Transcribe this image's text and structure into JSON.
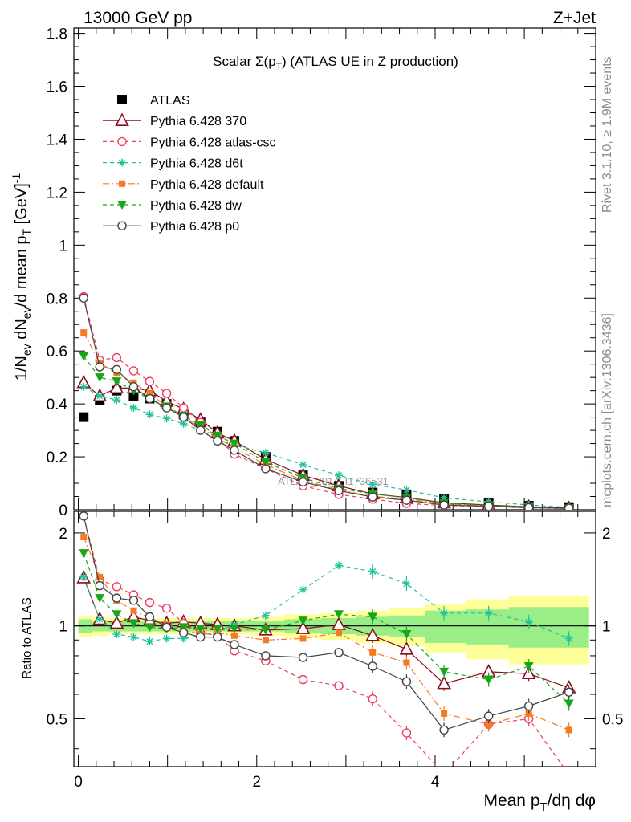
{
  "header": {
    "left": "13000 GeV pp",
    "right": "Z+Jet"
  },
  "side_labels": {
    "top": "Rivet 3.1.10, ≥ 1.9M events",
    "bottom": "mcplots.cern.ch [arXiv:1306.3436]"
  },
  "watermark": "ATLAS_2014_I1736531",
  "colors": {
    "data": "#000000",
    "p370": "#8b0e1c",
    "atlascsc": "#ef3b5e",
    "d6t": "#1fc29a",
    "default": "#f57a24",
    "dw": "#18a618",
    "p0": "#444444",
    "band_inner": "#99ee88",
    "band_outer": "#ffff99"
  },
  "chart_data": {
    "type": "line",
    "title": "Scalar Σ(p_T) (ATLAS UE in Z production)",
    "xlabel": "Mean p_T/dη dφ",
    "ylabel": "1/N_ev dN_ev/d mean p_T [GeV]^-1",
    "ratio_ylabel": "Ratio to ATLAS",
    "xlim": [
      -0.05,
      5.8
    ],
    "ylim": [
      0,
      1.82
    ],
    "ratio_ylim": [
      0.35,
      2.35
    ],
    "log_x": false,
    "grid": false,
    "legend_position": "top-left",
    "x_ticks": [
      "0",
      "2",
      "4"
    ],
    "y_ticks": [
      "0",
      "0.2",
      "0.4",
      "0.6",
      "0.8",
      "1",
      "1.2",
      "1.4",
      "1.6",
      "1.8"
    ],
    "ratio_y_ticks": [
      "0.5",
      "1",
      "2"
    ],
    "x": [
      0.06,
      0.24,
      0.43,
      0.62,
      0.8,
      0.99,
      1.18,
      1.37,
      1.56,
      1.75,
      2.1,
      2.52,
      2.92,
      3.3,
      3.68,
      4.1,
      4.6,
      5.05,
      5.5
    ],
    "series": [
      {
        "name": "ATLAS",
        "key": "data",
        "line": "none",
        "marker": "square",
        "values": [
          0.35,
          0.415,
          0.45,
          0.43,
          0.42,
          0.4,
          0.36,
          0.33,
          0.295,
          0.26,
          0.2,
          0.13,
          0.09,
          0.065,
          0.055,
          0.04,
          0.025,
          0.015,
          0.01
        ],
        "band_inner": [
          0.05,
          0.04,
          0.04,
          0.04,
          0.04,
          0.04,
          0.04,
          0.04,
          0.04,
          0.04,
          0.04,
          0.05,
          0.06,
          0.07,
          0.08,
          0.12,
          0.13,
          0.15,
          0.15
        ],
        "band_outer": [
          0.08,
          0.07,
          0.06,
          0.06,
          0.06,
          0.06,
          0.06,
          0.06,
          0.06,
          0.06,
          0.07,
          0.09,
          0.1,
          0.12,
          0.14,
          0.18,
          0.22,
          0.25,
          0.25
        ]
      },
      {
        "name": "Pythia 6.428 370",
        "key": "p370",
        "line": "solid",
        "marker": "triangle-open",
        "values": [
          0.48,
          0.43,
          0.46,
          0.46,
          0.45,
          0.41,
          0.38,
          0.34,
          0.29,
          0.26,
          0.19,
          0.13,
          0.09,
          0.06,
          0.046,
          0.026,
          0.018,
          0.011,
          0.006
        ],
        "ratio": [
          1.43,
          1.05,
          1.02,
          1.07,
          1.04,
          1.02,
          1.03,
          1.02,
          1.01,
          1.0,
          0.97,
          0.98,
          1.01,
          0.93,
          0.84,
          0.65,
          0.71,
          0.7,
          0.63
        ]
      },
      {
        "name": "Pythia 6.428 atlas-csc",
        "key": "atlascsc",
        "line": "dashed",
        "marker": "circle-open",
        "values": [
          0.805,
          0.565,
          0.575,
          0.525,
          0.485,
          0.44,
          0.385,
          0.33,
          0.27,
          0.21,
          0.155,
          0.09,
          0.058,
          0.04,
          0.024,
          0.016,
          0.012,
          0.008,
          0.004
        ],
        "ratio": [
          2.27,
          1.41,
          1.34,
          1.26,
          1.19,
          1.14,
          1.02,
          0.95,
          0.93,
          0.83,
          0.77,
          0.67,
          0.64,
          0.58,
          0.45,
          0.33,
          0.48,
          0.5,
          0.33
        ]
      },
      {
        "name": "Pythia 6.428 d6t",
        "key": "d6t",
        "line": "dashed",
        "marker": "star",
        "values": [
          0.465,
          0.43,
          0.415,
          0.385,
          0.36,
          0.345,
          0.325,
          0.3,
          0.265,
          0.245,
          0.215,
          0.17,
          0.13,
          0.095,
          0.075,
          0.045,
          0.03,
          0.018,
          0.009
        ],
        "ratio": [
          1.44,
          1.05,
          0.94,
          0.92,
          0.89,
          0.91,
          0.91,
          0.93,
          0.96,
          1.01,
          1.08,
          1.31,
          1.57,
          1.5,
          1.37,
          1.1,
          1.1,
          1.03,
          0.91
        ]
      },
      {
        "name": "Pythia 6.428 default",
        "key": "default",
        "line": "dashdot",
        "marker": "square",
        "values": [
          0.67,
          0.555,
          0.515,
          0.48,
          0.44,
          0.39,
          0.35,
          0.31,
          0.27,
          0.235,
          0.17,
          0.11,
          0.075,
          0.05,
          0.04,
          0.022,
          0.014,
          0.008,
          0.005
        ],
        "ratio": [
          1.94,
          1.44,
          1.21,
          1.12,
          1.06,
          1.01,
          0.97,
          0.94,
          0.95,
          0.93,
          0.9,
          0.91,
          0.95,
          0.82,
          0.76,
          0.52,
          0.48,
          0.52,
          0.46
        ]
      },
      {
        "name": "Pythia 6.428 dw",
        "key": "dw",
        "line": "dashed",
        "marker": "triangle-down",
        "values": [
          0.58,
          0.5,
          0.485,
          0.45,
          0.42,
          0.39,
          0.355,
          0.32,
          0.28,
          0.25,
          0.18,
          0.12,
          0.08,
          0.06,
          0.045,
          0.025,
          0.016,
          0.01,
          0.005
        ],
        "ratio": [
          1.72,
          1.23,
          1.09,
          1.02,
          0.99,
          0.98,
          0.99,
          0.98,
          0.98,
          0.98,
          0.97,
          1.04,
          1.09,
          1.07,
          0.94,
          0.71,
          0.67,
          0.74,
          0.56
        ]
      },
      {
        "name": "Pythia 6.428 p0",
        "key": "p0",
        "line": "solid",
        "marker": "circle-open",
        "values": [
          0.8,
          0.54,
          0.53,
          0.465,
          0.42,
          0.385,
          0.35,
          0.3,
          0.26,
          0.225,
          0.155,
          0.105,
          0.072,
          0.048,
          0.036,
          0.018,
          0.013,
          0.008,
          0.006
        ],
        "ratio": [
          2.27,
          1.35,
          1.23,
          1.21,
          1.07,
          0.99,
          0.95,
          0.92,
          0.92,
          0.87,
          0.8,
          0.79,
          0.82,
          0.74,
          0.66,
          0.46,
          0.51,
          0.55,
          0.61
        ]
      }
    ]
  }
}
